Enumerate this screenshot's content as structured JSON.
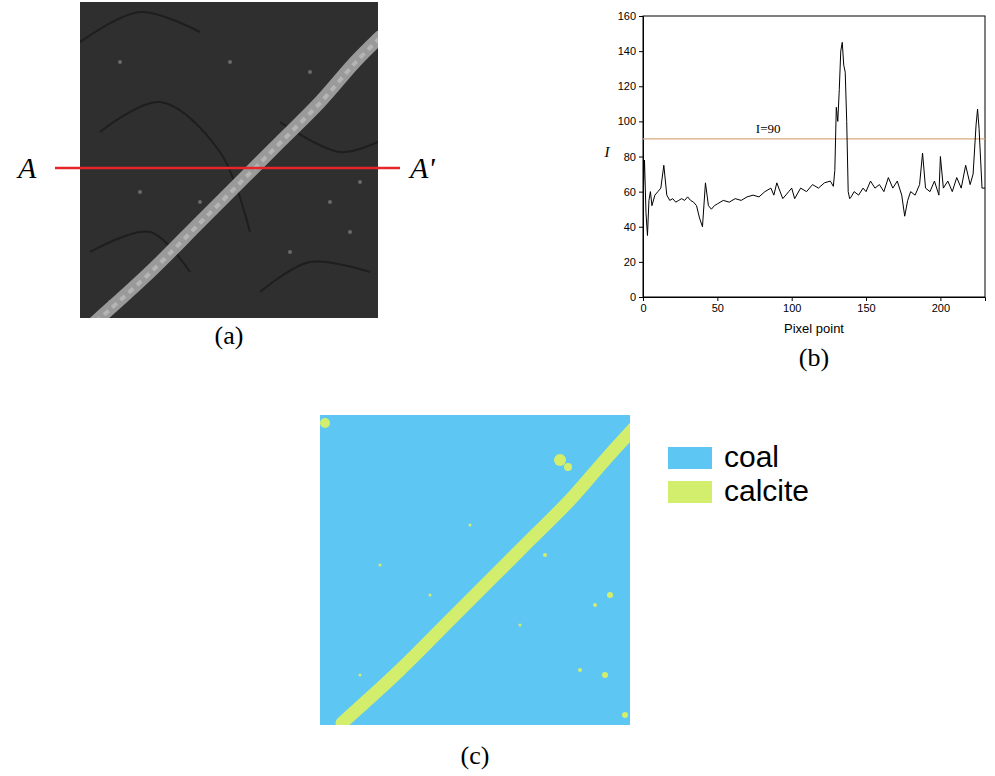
{
  "panels": {
    "a": {
      "label": "(a)",
      "line_labels": [
        "A",
        "A'"
      ]
    },
    "c": {
      "label": "(c)",
      "legend": [
        {
          "name": "coal",
          "color": "#5ec6f2"
        },
        {
          "name": "calcite",
          "color": "#d2ee6c"
        }
      ]
    }
  },
  "chart_data": {
    "type": "line",
    "title": "(b)",
    "x_label": "Pixel point",
    "y_label": "I",
    "color": "#000000",
    "x": [
      0,
      1,
      2,
      3,
      4,
      5,
      6,
      8,
      10,
      12,
      14,
      16,
      18,
      20,
      22,
      24,
      26,
      28,
      30,
      32,
      34,
      36,
      38,
      40,
      42,
      44,
      46,
      48,
      50,
      54,
      58,
      62,
      66,
      70,
      74,
      78,
      82,
      86,
      88,
      90,
      94,
      98,
      100,
      102,
      106,
      110,
      114,
      118,
      122,
      126,
      128,
      129,
      130,
      131,
      132,
      133,
      134,
      135,
      136,
      137,
      138,
      139,
      140,
      142,
      145,
      148,
      150,
      153,
      156,
      159,
      162,
      165,
      168,
      171,
      174,
      176,
      178,
      180,
      183,
      186,
      188,
      190,
      193,
      196,
      199,
      200,
      202,
      205,
      208,
      211,
      214,
      217,
      220,
      222,
      224,
      225,
      226,
      228,
      230
    ],
    "values": [
      55,
      78,
      48,
      35,
      55,
      60,
      52,
      58,
      60,
      62,
      75,
      58,
      55,
      56,
      54,
      55,
      56,
      55,
      57,
      55,
      54,
      52,
      45,
      40,
      65,
      52,
      50,
      52,
      53,
      55,
      54,
      56,
      55,
      57,
      58,
      57,
      60,
      62,
      58,
      65,
      56,
      60,
      62,
      56,
      62,
      60,
      64,
      62,
      65,
      66,
      63,
      72,
      108,
      100,
      118,
      140,
      145,
      132,
      128,
      100,
      60,
      56,
      57,
      60,
      58,
      62,
      60,
      66,
      62,
      64,
      60,
      68,
      62,
      66,
      58,
      46,
      55,
      60,
      58,
      64,
      82,
      62,
      60,
      66,
      58,
      80,
      62,
      66,
      60,
      68,
      62,
      75,
      64,
      70,
      98,
      107,
      96,
      62,
      62
    ],
    "xlim": [
      0,
      230
    ],
    "xticks": [
      0,
      50,
      100,
      150,
      200
    ],
    "ylim": [
      0,
      160
    ],
    "yticks": [
      0,
      20,
      40,
      60,
      80,
      100,
      120,
      140,
      160
    ],
    "annotations": [
      {
        "text": "I=90",
        "y": 90,
        "color": "#d9a882"
      }
    ]
  }
}
